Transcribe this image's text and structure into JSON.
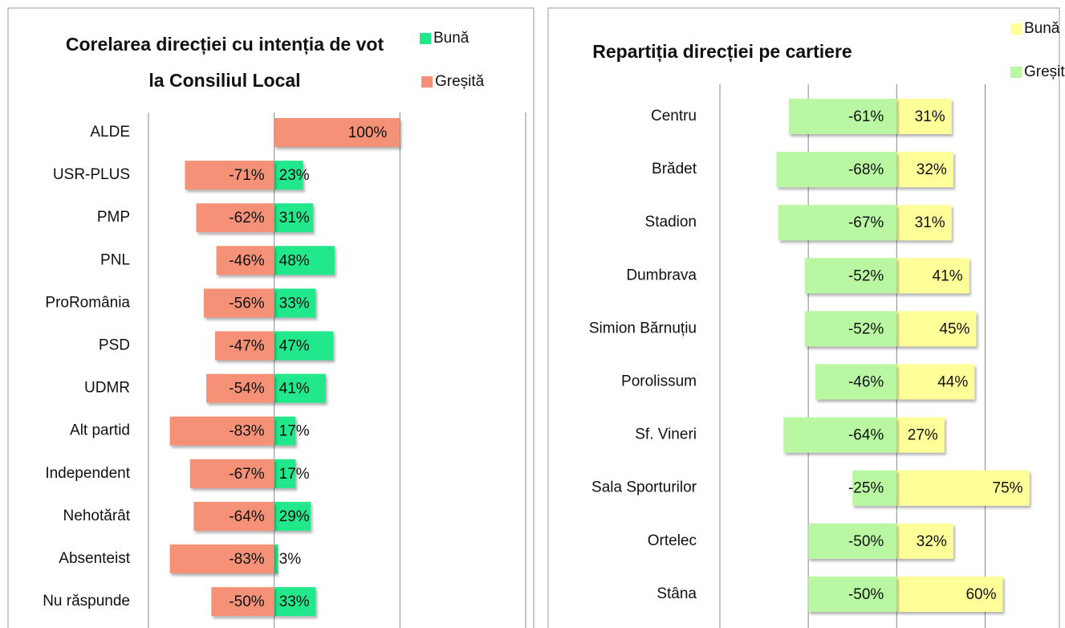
{
  "chart_data": [
    {
      "type": "diverging-bar",
      "title": [
        "Corelarea direcției cu intenția de vot",
        "la Consiliul Local"
      ],
      "categories": [
        "ALDE",
        "USR-PLUS",
        "PMP",
        "PNL",
        "ProRomânia",
        "PSD",
        "UDMR",
        "Alt partid",
        "Independent",
        "Nehotărât",
        "Absenteist",
        "Nu răspunde"
      ],
      "series": [
        {
          "name": "Bună",
          "color": "#22e88c",
          "values": [
            null,
            23,
            31,
            48,
            33,
            47,
            41,
            17,
            17,
            29,
            3,
            33
          ],
          "value_labels": [
            null,
            "23%",
            "31%",
            "48%",
            "33%",
            "47%",
            "41%",
            "17%",
            "17%",
            "29%",
            "3%",
            "33%"
          ]
        },
        {
          "name": "Greșită",
          "color": "#f49176",
          "values": [
            100,
            -71,
            -62,
            -46,
            -56,
            -47,
            -54,
            -83,
            -67,
            -64,
            -83,
            -50
          ],
          "value_labels": [
            "100%",
            "-71%",
            "-62%",
            "-46%",
            "-56%",
            "-47%",
            "-54%",
            "-83%",
            "-67%",
            "-64%",
            "-83%",
            "-50%"
          ]
        }
      ],
      "xlim": [
        -100,
        200
      ],
      "xticks": [
        -100,
        0,
        100,
        200
      ],
      "grid": true
    },
    {
      "type": "diverging-bar",
      "title": [
        "Repartiția direcției pe cartiere"
      ],
      "categories": [
        "Centru",
        "Brădet",
        "Stadion",
        "Dumbrava",
        "Simion Bărnuțiu",
        "Porolissum",
        "Sf. Vineri",
        "Sala Sporturilor",
        "Ortelec",
        "Stâna"
      ],
      "series": [
        {
          "name": "Bună",
          "color": "#ffff99",
          "values": [
            31,
            32,
            31,
            41,
            45,
            44,
            27,
            75,
            32,
            60
          ],
          "value_labels": [
            "31%",
            "32%",
            "31%",
            "41%",
            "45%",
            "44%",
            "27%",
            "75%",
            "32%",
            "60%"
          ]
        },
        {
          "name": "Greșită",
          "color": "#b9f7a2",
          "values": [
            -61,
            -68,
            -67,
            -52,
            -52,
            -46,
            -64,
            -25,
            -50,
            -50
          ],
          "value_labels": [
            "-61%",
            "-68%",
            "-67%",
            "-52%",
            "-52%",
            "-46%",
            "-64%",
            "-25%",
            "-50%",
            "-50%"
          ]
        }
      ],
      "xlim": [
        -100,
        92
      ],
      "xticks": [
        -100,
        -50,
        0,
        50
      ],
      "grid": true
    }
  ]
}
